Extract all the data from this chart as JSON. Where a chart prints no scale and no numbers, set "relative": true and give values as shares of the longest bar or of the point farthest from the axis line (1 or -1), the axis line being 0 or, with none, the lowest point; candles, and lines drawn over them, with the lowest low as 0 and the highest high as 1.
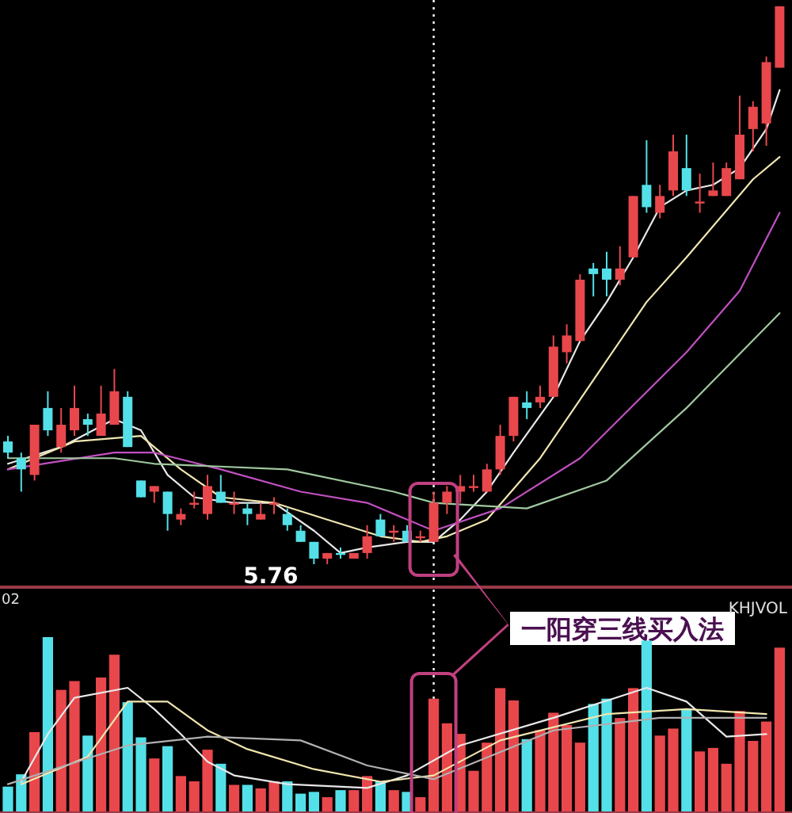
{
  "chart_data": [
    {
      "type": "candlestick",
      "relative": true,
      "categories": [
        null,
        null,
        null,
        null,
        null,
        null,
        null,
        null,
        null,
        null,
        null,
        null,
        null,
        null,
        null,
        null,
        null,
        null,
        null,
        null,
        null,
        null,
        null,
        null,
        null,
        null,
        null,
        null,
        null,
        null,
        null,
        null,
        null,
        null,
        null,
        null,
        null,
        null,
        null,
        null,
        null,
        null,
        null,
        null,
        null,
        null,
        null,
        null,
        null,
        null,
        null,
        null,
        null,
        null,
        null,
        null,
        null,
        null,
        null
      ],
      "ohlc": [
        [
          0.22,
          0.23,
          0.19,
          0.2
        ],
        [
          0.19,
          0.2,
          0.13,
          0.17
        ],
        [
          0.16,
          0.25,
          0.15,
          0.25
        ],
        [
          0.28,
          0.31,
          0.23,
          0.24
        ],
        [
          0.21,
          0.28,
          0.2,
          0.25
        ],
        [
          0.24,
          0.32,
          0.23,
          0.28
        ],
        [
          0.26,
          0.27,
          0.23,
          0.25
        ],
        [
          0.23,
          0.32,
          0.23,
          0.27
        ],
        [
          0.25,
          0.35,
          0.25,
          0.31
        ],
        [
          0.3,
          0.31,
          0.21,
          0.21
        ],
        [
          0.15,
          0.15,
          0.12,
          0.12
        ],
        [
          0.13,
          0.14,
          0.11,
          0.14
        ],
        [
          0.13,
          0.13,
          0.06,
          0.09
        ],
        [
          0.08,
          0.1,
          0.07,
          0.09
        ],
        [
          0.11,
          0.13,
          0.1,
          0.11
        ],
        [
          0.09,
          0.16,
          0.08,
          0.14
        ],
        [
          0.13,
          0.16,
          0.11,
          0.11
        ],
        [
          0.11,
          0.13,
          0.09,
          0.11
        ],
        [
          0.1,
          0.11,
          0.07,
          0.09
        ],
        [
          0.08,
          0.11,
          0.08,
          0.09
        ],
        [
          0.11,
          0.12,
          0.09,
          0.11
        ],
        [
          0.09,
          0.1,
          0.06,
          0.07
        ],
        [
          0.06,
          0.07,
          0.04,
          0.04
        ],
        [
          0.04,
          0.04,
          0,
          0.01
        ],
        [
          0.01,
          0.02,
          0,
          0.02
        ],
        [
          0.02,
          0.03,
          0.01,
          0.02
        ],
        [
          0.01,
          0.02,
          0.01,
          0.02
        ],
        [
          0.02,
          0.07,
          0.01,
          0.05
        ],
        [
          0.08,
          0.09,
          0.05,
          0.05
        ],
        [
          0.06,
          0.07,
          0.04,
          0.06
        ],
        [
          0.06,
          0.07,
          0.04,
          0.04
        ],
        [
          0.05,
          0.06,
          0.04,
          0.05
        ],
        [
          0.04,
          0.13,
          0.04,
          0.11
        ],
        [
          0.11,
          0.14,
          0.09,
          0.13
        ],
        [
          0.13,
          0.16,
          0.11,
          0.14
        ],
        [
          0.14,
          0.16,
          0.13,
          0.14
        ],
        [
          0.13,
          0.18,
          0.13,
          0.17
        ],
        [
          0.17,
          0.25,
          0.16,
          0.23
        ],
        [
          0.23,
          0.3,
          0.22,
          0.3
        ],
        [
          0.29,
          0.31,
          0.26,
          0.28
        ],
        [
          0.29,
          0.32,
          0.28,
          0.3
        ],
        [
          0.3,
          0.41,
          0.3,
          0.39
        ],
        [
          0.38,
          0.43,
          0.36,
          0.41
        ],
        [
          0.4,
          0.52,
          0.4,
          0.51
        ],
        [
          0.53,
          0.54,
          0.48,
          0.52
        ],
        [
          0.53,
          0.56,
          0.48,
          0.51
        ],
        [
          0.51,
          0.57,
          0.5,
          0.53
        ],
        [
          0.55,
          0.66,
          0.55,
          0.66
        ],
        [
          0.68,
          0.76,
          0.63,
          0.64
        ],
        [
          0.63,
          0.68,
          0.62,
          0.66
        ],
        [
          0.67,
          0.77,
          0.66,
          0.74
        ],
        [
          0.71,
          0.77,
          0.66,
          0.67
        ],
        [
          0.65,
          0.7,
          0.63,
          0.65
        ],
        [
          0.66,
          0.72,
          0.66,
          0.67
        ],
        [
          0.66,
          0.72,
          0.66,
          0.71
        ],
        [
          0.69,
          0.84,
          0.69,
          0.77
        ],
        [
          0.78,
          0.83,
          0.74,
          0.82
        ],
        [
          0.79,
          0.91,
          0.75,
          0.9
        ],
        [
          0.89,
          1.0,
          0.89,
          1.0
        ]
      ],
      "colors": [
        "#54e0e8",
        "#54e0e8",
        "#e8474c",
        "#54e0e8",
        "#e8474c",
        "#e8474c",
        "#54e0e8",
        "#e8474c",
        "#e8474c",
        "#54e0e8",
        "#54e0e8",
        "#e8474c",
        "#54e0e8",
        "#e8474c",
        "#e8474c",
        "#e8474c",
        "#54e0e8",
        "#e8474c",
        "#54e0e8",
        "#e8474c",
        "#e8474c",
        "#54e0e8",
        "#54e0e8",
        "#54e0e8",
        "#e8474c",
        "#54e0e8",
        "#e8474c",
        "#e8474c",
        "#54e0e8",
        "#e8474c",
        "#54e0e8",
        "#e8474c",
        "#e8474c",
        "#e8474c",
        "#e8474c",
        "#e8474c",
        "#e8474c",
        "#e8474c",
        "#e8474c",
        "#54e0e8",
        "#e8474c",
        "#e8474c",
        "#e8474c",
        "#e8474c",
        "#54e0e8",
        "#54e0e8",
        "#e8474c",
        "#e8474c",
        "#54e0e8",
        "#e8474c",
        "#e8474c",
        "#54e0e8",
        "#e8474c",
        "#e8474c",
        "#e8474c",
        "#e8474c",
        "#e8474c",
        "#e8474c",
        "#e8474c"
      ],
      "series": [
        {
          "type": "line",
          "color": "#e8e8e8",
          "values": [
            0.18,
            null,
            null,
            null,
            0.21,
            null,
            null,
            null,
            0.26,
            null,
            0.24,
            null,
            0.16,
            null,
            0.12,
            null,
            null,
            0.11,
            null,
            null,
            0.11,
            null,
            null,
            0.06,
            null,
            0.02,
            null,
            0.03,
            null,
            null,
            0.04,
            null,
            0.04,
            null,
            0.08,
            null,
            0.13,
            null,
            0.2,
            null,
            null,
            0.3,
            null,
            0.4,
            null,
            0.47,
            null,
            0.55,
            null,
            0.64,
            null,
            0.67,
            null,
            0.68,
            null,
            0.71,
            null,
            0.78,
            0.85
          ]
        },
        {
          "type": "line",
          "color": "#f0e6b0",
          "values": [
            0.17,
            null,
            null,
            null,
            null,
            0.22,
            null,
            null,
            null,
            null,
            0.23,
            null,
            null,
            0.17,
            null,
            null,
            0.12,
            null,
            null,
            null,
            0.11,
            null,
            null,
            null,
            0.08,
            null,
            null,
            null,
            0.05,
            null,
            null,
            0.04,
            null,
            0.05,
            null,
            null,
            0.08,
            null,
            null,
            null,
            0.19,
            null,
            null,
            null,
            0.33,
            null,
            null,
            null,
            0.47,
            null,
            null,
            0.55,
            null,
            null,
            null,
            null,
            0.69,
            null,
            0.73
          ]
        },
        {
          "type": "line",
          "color": "#c050c0",
          "values": [
            0.17,
            null,
            null,
            null,
            null,
            null,
            null,
            null,
            0.2,
            null,
            null,
            0.2,
            null,
            null,
            null,
            null,
            0.17,
            null,
            null,
            null,
            null,
            null,
            0.13,
            null,
            null,
            null,
            null,
            0.11,
            null,
            null,
            null,
            null,
            0.06,
            null,
            null,
            null,
            null,
            0.1,
            null,
            null,
            null,
            null,
            null,
            0.19,
            null,
            null,
            null,
            null,
            null,
            null,
            null,
            0.38,
            null,
            null,
            null,
            0.49,
            null,
            null,
            0.63
          ]
        },
        {
          "type": "line",
          "color": "#a0c8a0",
          "values": [
            0.19,
            null,
            null,
            null,
            null,
            null,
            null,
            null,
            0.19,
            null,
            null,
            0.18,
            null,
            null,
            null,
            null,
            null,
            null,
            null,
            null,
            null,
            0.17,
            null,
            null,
            null,
            null,
            null,
            null,
            null,
            0.13,
            null,
            null,
            0.11,
            null,
            null,
            null,
            null,
            null,
            null,
            0.1,
            null,
            null,
            null,
            null,
            null,
            0.15,
            null,
            null,
            null,
            null,
            null,
            0.28,
            null,
            null,
            null,
            null,
            null,
            null,
            0.45
          ]
        }
      ],
      "annotations": [
        "5.76",
        "一阳穿三线买入法"
      ]
    },
    {
      "type": "bar",
      "relative": true,
      "title": "KHJVOL",
      "categories": [
        null,
        null,
        null,
        null,
        null,
        null,
        null,
        null,
        null,
        null,
        null,
        null,
        null,
        null,
        null,
        null,
        null,
        null,
        null,
        null,
        null,
        null,
        null,
        null,
        null,
        null,
        null,
        null,
        null,
        null,
        null,
        null,
        null,
        null,
        null,
        null,
        null,
        null,
        null,
        null,
        null,
        null,
        null,
        null,
        null,
        null,
        null,
        null,
        null,
        null,
        null,
        null,
        null,
        null,
        null,
        null,
        null,
        null,
        null
      ],
      "series": [
        {
          "type": "bar",
          "values": [
            0.15,
            0.22,
            0.46,
            1.0,
            0.7,
            0.75,
            0.44,
            0.77,
            0.9,
            0.63,
            0.43,
            0.31,
            0.38,
            0.21,
            0.18,
            0.36,
            0.28,
            0.16,
            0.16,
            0.14,
            0.18,
            0.18,
            0.11,
            0.12,
            0.09,
            0.13,
            0.13,
            0.21,
            0.18,
            0.13,
            0.12,
            0.09,
            0.65,
            0.51,
            0.45,
            0.24,
            0.4,
            0.71,
            0.64,
            0.42,
            0.47,
            0.57,
            0.5,
            0.4,
            0.62,
            0.65,
            0.54,
            0.71,
            0.98,
            0.44,
            0.48,
            0.59,
            0.35,
            0.37,
            0.28,
            0.58,
            0.41,
            0.52,
            0.94
          ],
          "colors": [
            "#54e0e8",
            "#54e0e8",
            "#e8474c",
            "#54e0e8",
            "#e8474c",
            "#e8474c",
            "#54e0e8",
            "#e8474c",
            "#e8474c",
            "#54e0e8",
            "#54e0e8",
            "#e8474c",
            "#54e0e8",
            "#e8474c",
            "#e8474c",
            "#e8474c",
            "#54e0e8",
            "#e8474c",
            "#54e0e8",
            "#e8474c",
            "#e8474c",
            "#54e0e8",
            "#54e0e8",
            "#54e0e8",
            "#e8474c",
            "#54e0e8",
            "#e8474c",
            "#e8474c",
            "#54e0e8",
            "#e8474c",
            "#54e0e8",
            "#e8474c",
            "#e8474c",
            "#e8474c",
            "#e8474c",
            "#e8474c",
            "#e8474c",
            "#e8474c",
            "#e8474c",
            "#54e0e8",
            "#e8474c",
            "#e8474c",
            "#e8474c",
            "#e8474c",
            "#54e0e8",
            "#54e0e8",
            "#e8474c",
            "#e8474c",
            "#54e0e8",
            "#e8474c",
            "#e8474c",
            "#54e0e8",
            "#e8474c",
            "#e8474c",
            "#e8474c",
            "#e8474c",
            "#e8474c",
            "#e8474c",
            "#e8474c"
          ]
        }
      ],
      "annotations": [
        "02"
      ]
    },
    {
      "type": "line",
      "relative": true,
      "categories": [
        null,
        null,
        null,
        null,
        null,
        null,
        null,
        null,
        null,
        null,
        null,
        null,
        null,
        null,
        null,
        null,
        null,
        null,
        null,
        null,
        null,
        null,
        null,
        null,
        null,
        null,
        null,
        null,
        null,
        null,
        null,
        null,
        null,
        null,
        null,
        null,
        null,
        null,
        null,
        null,
        null,
        null,
        null,
        null,
        null,
        null,
        null,
        null,
        null,
        null,
        null,
        null,
        null,
        null,
        null,
        null,
        null,
        null,
        null
      ],
      "series": [
        {
          "type": "line",
          "color": "#e8e8e8",
          "values": [
            null,
            0.25,
            null,
            0.63,
            null,
            0.92,
            null,
            null,
            null,
            1.0,
            null,
            0.83,
            null,
            0.63,
            null,
            0.41,
            null,
            0.3,
            null,
            null,
            null,
            0.23,
            null,
            null,
            null,
            null,
            null,
            0.2,
            null,
            null,
            0.3,
            null,
            null,
            null,
            0.54,
            null,
            null,
            null,
            null,
            null,
            null,
            0.76,
            null,
            null,
            null,
            null,
            null,
            null,
            1.0,
            null,
            null,
            0.89,
            null,
            null,
            0.61,
            null,
            null,
            0.63,
            null
          ]
        },
        {
          "type": "line",
          "color": "#f0e6b0",
          "values": [
            null,
            0.23,
            null,
            null,
            null,
            null,
            0.45,
            null,
            null,
            0.89,
            null,
            null,
            0.89,
            null,
            null,
            0.66,
            null,
            null,
            0.51,
            null,
            null,
            null,
            null,
            0.35,
            null,
            null,
            null,
            null,
            0.25,
            null,
            null,
            null,
            0.3,
            null,
            null,
            null,
            null,
            0.58,
            null,
            null,
            null,
            null,
            null,
            null,
            null,
            0.79,
            null,
            null,
            null,
            null,
            null,
            0.83,
            null,
            null,
            null,
            null,
            null,
            0.79,
            null
          ]
        },
        {
          "type": "line",
          "color": "#b0b0b0",
          "values": [
            0.23,
            null,
            null,
            null,
            null,
            null,
            null,
            null,
            null,
            0.54,
            null,
            null,
            null,
            null,
            null,
            0.61,
            null,
            null,
            null,
            null,
            null,
            null,
            0.58,
            null,
            null,
            null,
            null,
            0.38,
            null,
            null,
            null,
            null,
            0.27,
            null,
            null,
            null,
            null,
            null,
            null,
            null,
            null,
            0.66,
            null,
            null,
            null,
            null,
            null,
            null,
            null,
            0.76,
            null,
            null,
            null,
            null,
            null,
            null,
            null,
            0.76,
            null
          ]
        }
      ]
    }
  ]
}
